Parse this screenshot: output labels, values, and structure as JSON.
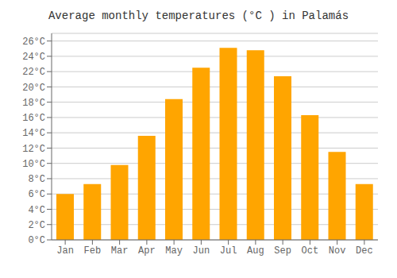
{
  "chart_data": {
    "type": "bar",
    "title": "Average monthly temperatures (°C ) in Palamás",
    "categories": [
      "Jan",
      "Feb",
      "Mar",
      "Apr",
      "May",
      "Jun",
      "Jul",
      "Aug",
      "Sep",
      "Oct",
      "Nov",
      "Dec"
    ],
    "values": [
      6.0,
      7.3,
      9.8,
      13.6,
      18.4,
      22.5,
      25.1,
      24.8,
      21.4,
      16.3,
      11.5,
      7.3
    ],
    "color": "#FFA500",
    "ylim": [
      0,
      27
    ],
    "yticks": [
      {
        "value": 0,
        "label": "0°C"
      },
      {
        "value": 2,
        "label": "2°C"
      },
      {
        "value": 4,
        "label": "4°C"
      },
      {
        "value": 6,
        "label": "6°C"
      },
      {
        "value": 8,
        "label": "8°C"
      },
      {
        "value": 10,
        "label": "10°C"
      },
      {
        "value": 12,
        "label": "12°C"
      },
      {
        "value": 14,
        "label": "14°C"
      },
      {
        "value": 16,
        "label": "16°C"
      },
      {
        "value": 18,
        "label": "18°C"
      },
      {
        "value": 20,
        "label": "20°C"
      },
      {
        "value": 22,
        "label": "22°C"
      },
      {
        "value": 24,
        "label": "24°C"
      },
      {
        "value": 26,
        "label": "26°C"
      }
    ],
    "grid": true
  }
}
